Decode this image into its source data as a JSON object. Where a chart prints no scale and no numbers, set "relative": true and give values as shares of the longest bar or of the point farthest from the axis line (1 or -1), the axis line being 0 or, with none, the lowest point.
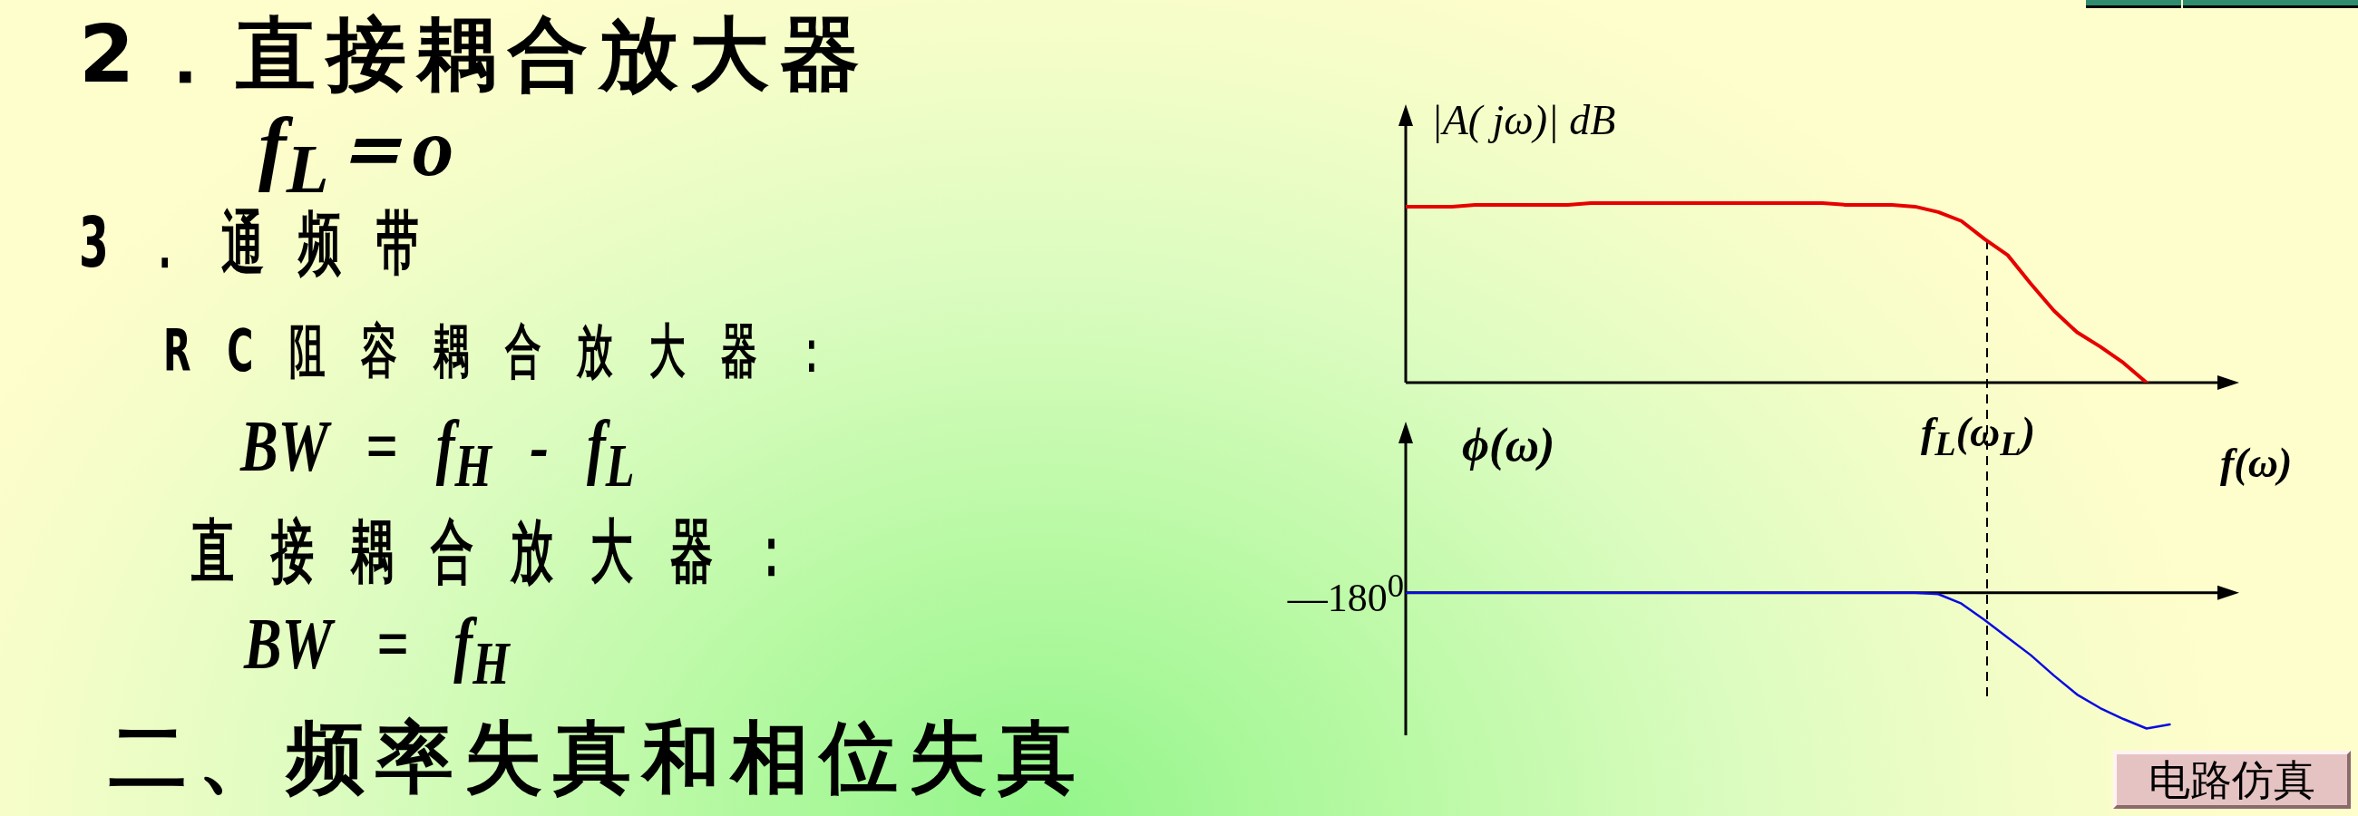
{
  "chart_data": [
    {
      "type": "other",
      "title": "2．直接耦合放大器",
      "annotations": [
        "f$_{L}$＝o",
        "3．通频带",
        "RC阻容耦合放大器：",
        "BW = f$_{H}$ - f$_{L}$",
        "直接耦合放大器：",
        "BW = f$_{H}$",
        "二、频率失真和相位失真",
        "电路仿真"
      ]
    },
    {
      "type": "line",
      "relative": true,
      "ylabel": "|A( jω)| dB",
      "xlabel": "f(ω)",
      "categories": [
        null,
        null,
        null,
        null,
        null,
        null,
        null,
        null,
        null,
        null,
        null,
        null,
        null,
        null,
        null,
        null,
        null,
        null,
        null,
        null,
        null,
        null,
        null,
        null,
        null,
        null,
        null,
        null,
        null,
        null,
        null,
        null,
        null,
        null,
        null,
        null,
        null
      ],
      "series": [
        {
          "color": "#e60000",
          "values": [
            0.98,
            0.98,
            0.98,
            0.99,
            0.99,
            0.99,
            0.99,
            0.99,
            1,
            1,
            1,
            1,
            1,
            1,
            1,
            1,
            1,
            1,
            1,
            0.99,
            0.99,
            0.99,
            0.98,
            0.95,
            0.9,
            0.8,
            0.71,
            0.55,
            0.4,
            0.28,
            0.2,
            0.11,
            0,
            null,
            null,
            null,
            null
          ]
        }
      ],
      "annotations": [
        "f$_{L}$(ω$_{L}$)"
      ]
    },
    {
      "type": "line",
      "relative": true,
      "ylabel": "ϕ(ω)",
      "categories": [
        null,
        null,
        null,
        null,
        null,
        null,
        null,
        null,
        null,
        null,
        null,
        null,
        null,
        null,
        null,
        null,
        null,
        null,
        null,
        null,
        null,
        null,
        null,
        null,
        null,
        null,
        null,
        null,
        null,
        null,
        null,
        null,
        null,
        null,
        null,
        null,
        null
      ],
      "series": [
        {
          "color": "#0a0ae0",
          "values": [
            0,
            0,
            0,
            0,
            0,
            0,
            0,
            0,
            0,
            0,
            0,
            0,
            0,
            0,
            0,
            0,
            0,
            0,
            0,
            0,
            0,
            0,
            0,
            -0.01,
            -0.08,
            -0.2,
            -0.33,
            -0.46,
            -0.61,
            -0.75,
            -0.85,
            -0.93,
            -1,
            -0.97,
            null,
            null,
            null
          ]
        }
      ],
      "annotations": [
        "—180$^{0}$"
      ]
    }
  ]
}
